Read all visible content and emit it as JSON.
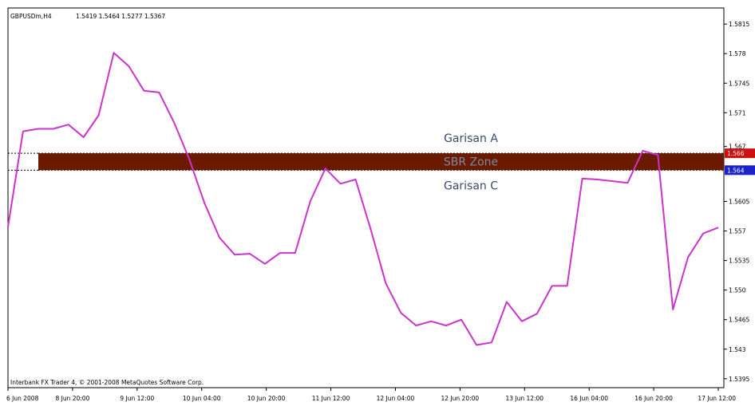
{
  "header": {
    "symbol": "GBPUSDm,H4",
    "quote": "1.5419 1.5464 1.5277 1.5367"
  },
  "footer": {
    "copyright": "Interbank FX Trader 4, © 2001-2008 MetaQuotes Software Corp."
  },
  "zone": {
    "label": "SBR Zone",
    "upper_label": "Garisan A",
    "lower_label": "Garisan C",
    "upper_price": 1.5662,
    "lower_price": 1.5642,
    "upper_price_label": "1.566",
    "lower_price_label": "1.564",
    "fill_color": "#6b1a00",
    "upper_tag_color": "#cc1111",
    "lower_tag_color": "#1a22cc"
  },
  "colors": {
    "line": "#cc33cc",
    "frame": "#000000",
    "label_text": "#3a4a6b"
  },
  "chart_data": {
    "type": "line",
    "title": "",
    "xlabel": "",
    "ylabel": "",
    "ylim": [
      1.5392,
      1.5818
    ],
    "x_tick_labels": [
      "6 Jun 2008",
      "8 Jun 20:00",
      "9 Jun 12:00",
      "10 Jun 04:00",
      "10 Jun 20:00",
      "11 Jun 12:00",
      "12 Jun 04:00",
      "12 Jun 20:00",
      "13 Jun 12:00",
      "16 Jun 04:00",
      "16 Jun 20:00",
      "17 Jun 12:00"
    ],
    "y_tick_labels": [
      "1.5815",
      "1.578",
      "1.5745",
      "1.571",
      "1.567",
      "1.5605",
      "1.557",
      "1.5535",
      "1.550",
      "1.5465",
      "1.543",
      "1.5395"
    ],
    "y_tick_values": [
      1.5815,
      1.578,
      1.5745,
      1.571,
      1.567,
      1.5605,
      1.557,
      1.5535,
      1.55,
      1.5465,
      1.543,
      1.5395
    ],
    "series": [
      {
        "values": [
          1.5575,
          1.5688,
          1.5691,
          1.5691,
          1.5696,
          1.5681,
          1.5707,
          1.5781,
          1.5765,
          1.5736,
          1.5734,
          1.5698,
          1.5655,
          1.5603,
          1.5562,
          1.5542,
          1.5543,
          1.5531,
          1.5544,
          1.5544,
          1.5605,
          1.5644,
          1.5626,
          1.5631,
          1.5572,
          1.5508,
          1.5473,
          1.5458,
          1.5463,
          1.5458,
          1.5465,
          1.5435,
          1.5438,
          1.5486,
          1.5463,
          1.5472,
          1.5505,
          1.5505,
          1.5632,
          1.5631,
          1.5629,
          1.5627,
          1.5665,
          1.566,
          1.5477,
          1.5539,
          1.5567,
          1.5574
        ]
      }
    ]
  }
}
